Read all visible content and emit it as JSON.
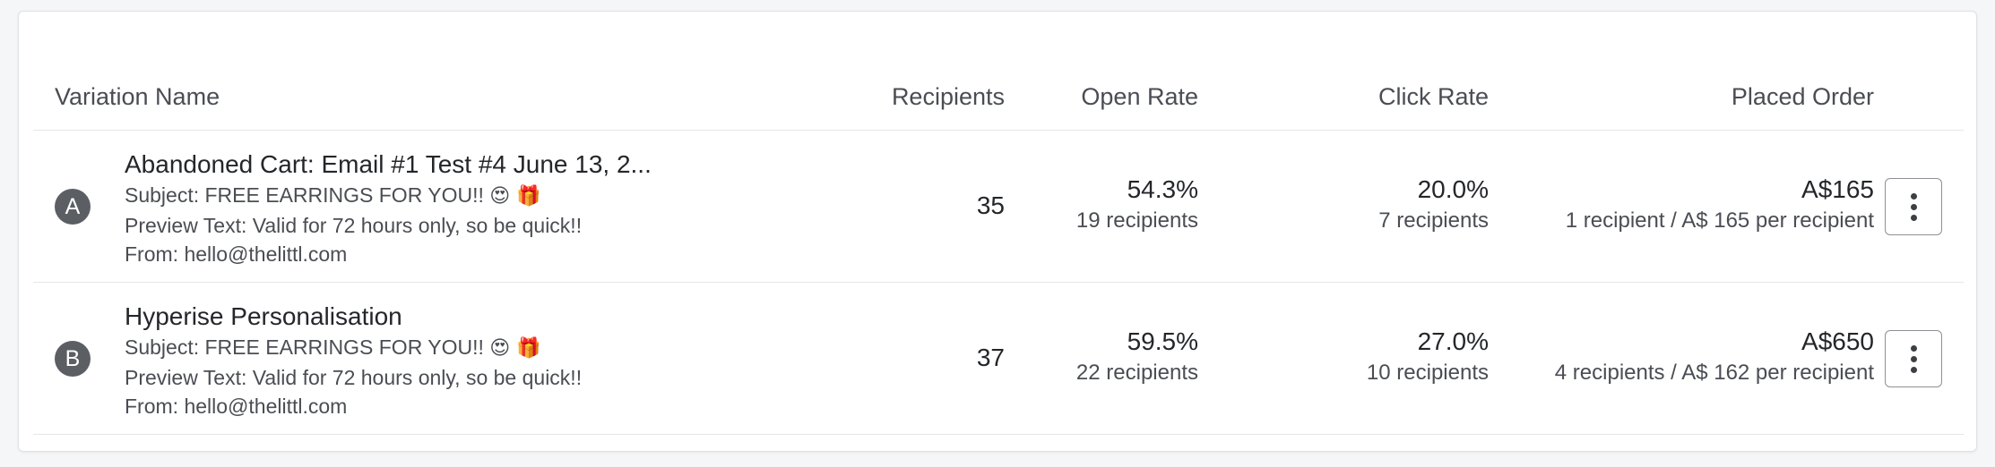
{
  "table": {
    "headers": {
      "variation_name": "Variation Name",
      "recipients": "Recipients",
      "open_rate": "Open Rate",
      "click_rate": "Click Rate",
      "placed_order": "Placed Order"
    },
    "rows": [
      {
        "badge": "A",
        "title": "Abandoned Cart: Email #1 Test #4 June 13, 2...",
        "subject": "Subject: FREE EARRINGS FOR YOU!!",
        "subject_emoji": "😍 🎁",
        "preview": "Preview Text: Valid for 72 hours only, so be quick!!",
        "from": "From: hello@thelittl.com",
        "recipients": "35",
        "open_rate": "54.3%",
        "open_recipients": "19 recipients",
        "click_rate": "20.0%",
        "click_recipients": "7 recipients",
        "placed_order": "A$165",
        "placed_detail": "1 recipient / A$ 165 per recipient"
      },
      {
        "badge": "B",
        "title": "Hyperise Personalisation",
        "subject": "Subject: FREE EARRINGS FOR YOU!!",
        "subject_emoji": "😍 🎁",
        "preview": "Preview Text: Valid for 72 hours only, so be quick!!",
        "from": "From: hello@thelittl.com",
        "recipients": "37",
        "open_rate": "59.5%",
        "open_recipients": "22 recipients",
        "click_rate": "27.0%",
        "click_recipients": "10 recipients",
        "placed_order": "A$650",
        "placed_detail": "4 recipients / A$ 162 per recipient"
      }
    ]
  },
  "icons": {
    "more": "vertical-ellipsis-icon"
  },
  "colors": {
    "badge_bg": "#5b5e63",
    "border": "#e4e6ea",
    "text": "#2a2c30"
  }
}
